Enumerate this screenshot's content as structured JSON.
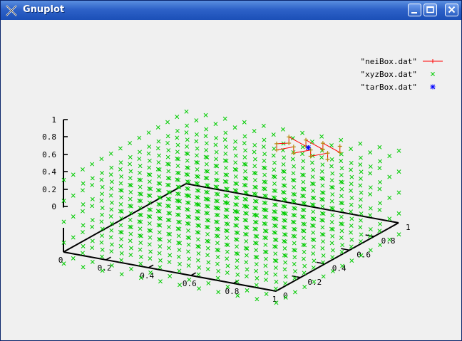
{
  "window": {
    "title": "Gnuplot",
    "controls": [
      "minimize",
      "maximize",
      "close"
    ]
  },
  "colors": {
    "neiBox": "#ff0000",
    "neiBox_points": "#b8860b",
    "xyzBox": "#00cc00",
    "tarBox": "#0000ff",
    "axes": "#000000",
    "titlebar": "#2e62c8"
  },
  "chart_data": {
    "type": "scatter",
    "dimensions": 3,
    "title": "",
    "xlabel": "",
    "ylabel": "",
    "zlabel": "",
    "xlim": [
      0,
      1
    ],
    "ylim": [
      0,
      1
    ],
    "zlim": [
      0,
      1
    ],
    "x_ticks": [
      "0",
      "0.2",
      "0.4",
      "0.6",
      "0.8",
      "1"
    ],
    "y_ticks": [
      "0",
      "0.2",
      "0.4",
      "0.6",
      "0.8",
      "1"
    ],
    "z_ticks": [
      "0",
      "0.2",
      "0.4",
      "0.6",
      "0.8",
      "1"
    ],
    "grid": false,
    "legend_position": "top-right",
    "series": [
      {
        "name": "\"neiBox.dat\"",
        "style": "linespoints",
        "points": [
          [
            0.78,
            0.8,
            0.93
          ],
          [
            0.78,
            0.8,
            1.0
          ],
          [
            0.7,
            0.8,
            0.93
          ],
          [
            0.7,
            0.8,
            1.0
          ],
          [
            0.62,
            0.8,
            0.93
          ],
          [
            0.62,
            0.8,
            1.0
          ],
          [
            0.54,
            0.8,
            0.93
          ],
          [
            0.54,
            0.8,
            1.0
          ],
          [
            0.54,
            0.9,
            0.93
          ],
          [
            0.54,
            0.9,
            1.0
          ],
          [
            0.62,
            0.9,
            0.93
          ],
          [
            0.62,
            0.9,
            1.0
          ],
          [
            0.7,
            0.9,
            0.93
          ],
          [
            0.7,
            0.9,
            1.0
          ],
          [
            0.78,
            0.9,
            0.93
          ],
          [
            0.78,
            0.9,
            1.0
          ]
        ]
      },
      {
        "name": "\"xyzBox.dat\"",
        "style": "points",
        "grid_x": [
          0,
          1,
          12
        ],
        "grid_y": [
          0,
          1,
          14
        ],
        "grid_z": [
          0.03,
          0.97,
          5
        ]
      },
      {
        "name": "\"tarBox.dat\"",
        "style": "points",
        "points": [
          [
            0.66,
            0.85,
            0.97
          ]
        ]
      }
    ]
  }
}
